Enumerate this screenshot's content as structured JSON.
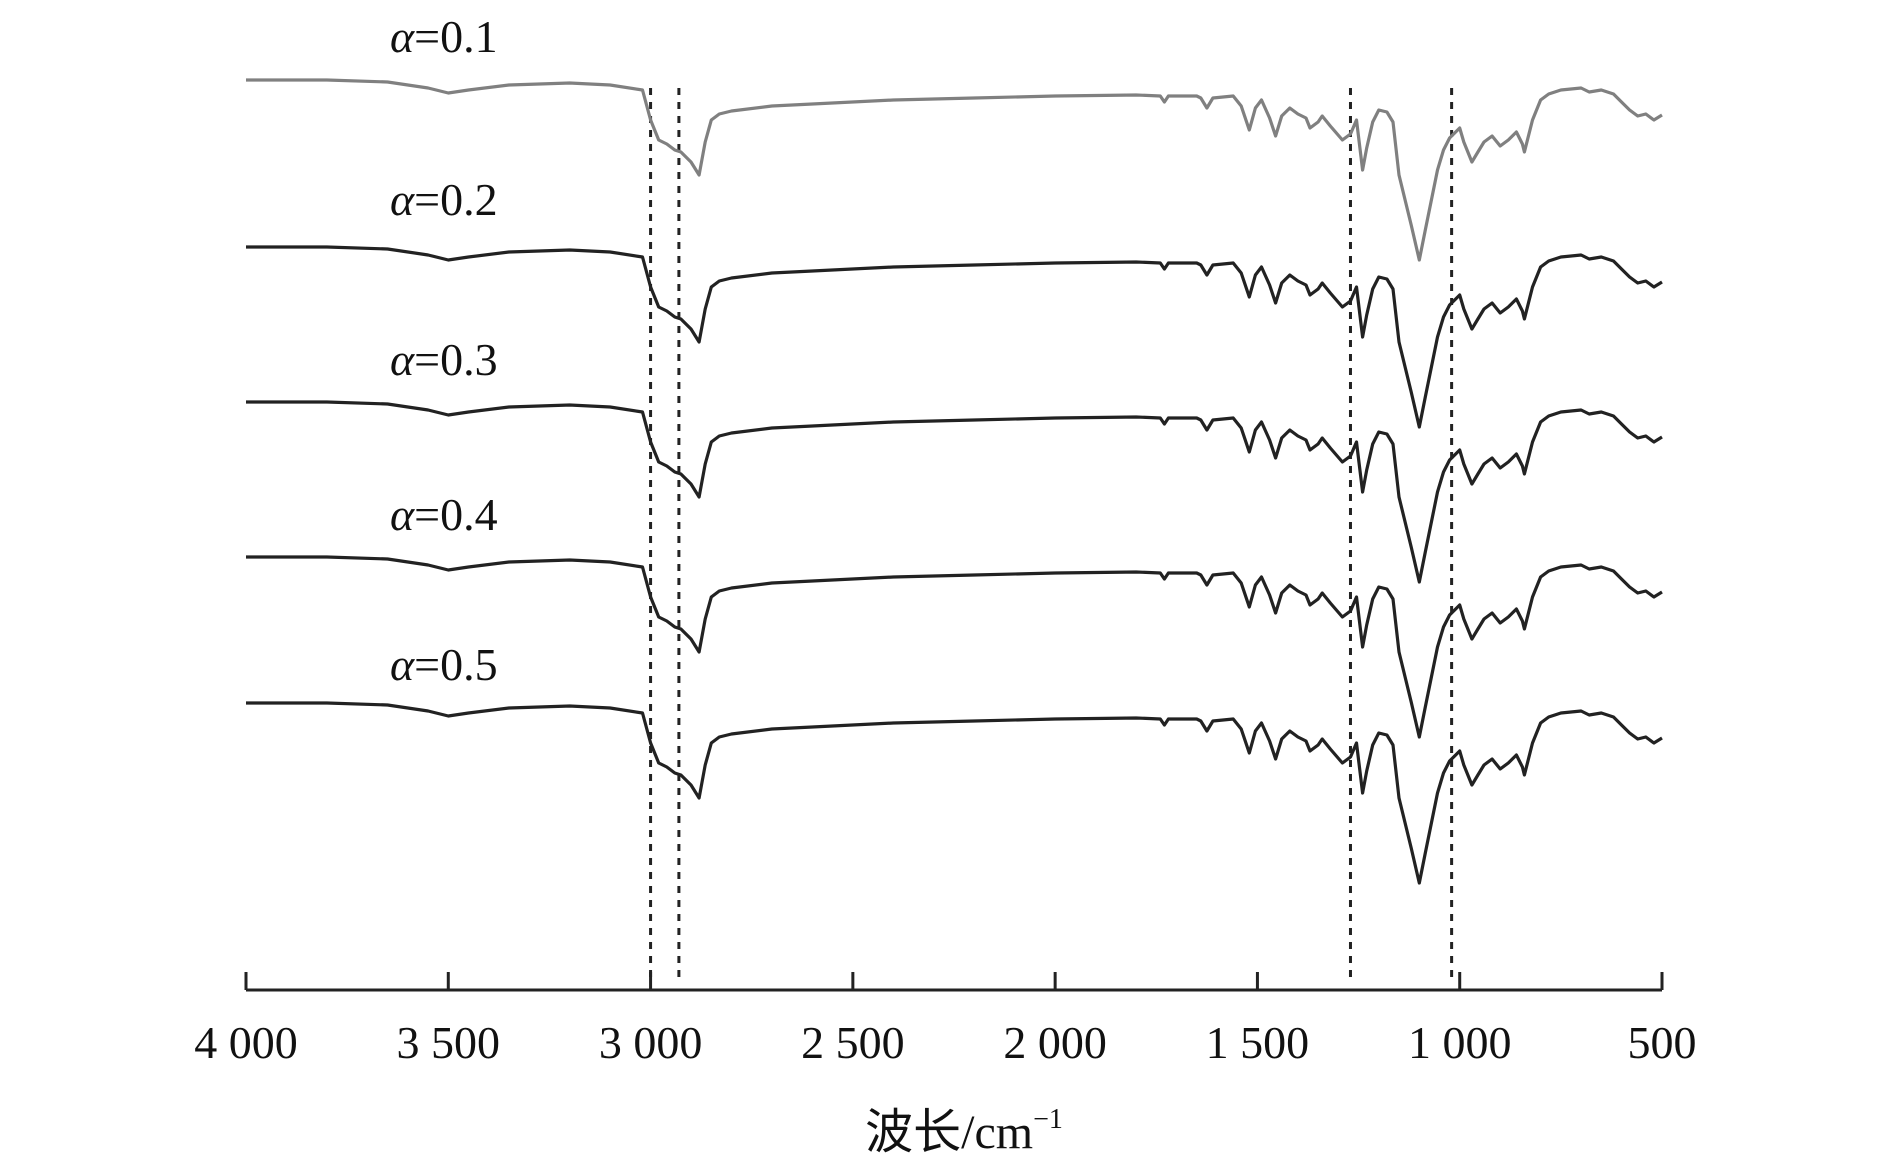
{
  "chart_data": {
    "type": "line",
    "title": "",
    "xlabel": "波长/cm",
    "xlabel_sup": "−1",
    "ylabel": "",
    "xlim": [
      4000,
      500
    ],
    "x_reversed": true,
    "x_ticks": [
      4000,
      3500,
      3000,
      2500,
      2000,
      1500,
      1000,
      500
    ],
    "x_tick_labels": [
      "4 000",
      "3 500",
      "3 000",
      "2 500",
      "2 000",
      "1 500",
      "1 000",
      "500"
    ],
    "y_axis_visible": false,
    "grid": false,
    "reference_lines_x": [
      3000,
      2930,
      1270,
      1020
    ],
    "series": [
      {
        "name": "α=0.1",
        "color": "#808080"
      },
      {
        "name": "α=0.2",
        "color": "#222222"
      },
      {
        "name": "α=0.3",
        "color": "#222222"
      },
      {
        "name": "α=0.4",
        "color": "#222222"
      },
      {
        "name": "α=0.5",
        "color": "#222222"
      }
    ],
    "series_label_prefix": "α",
    "series_label_values": [
      "=0.1",
      "=0.2",
      "=0.3",
      "=0.4",
      "=0.5"
    ],
    "spectrum_shape": [
      [
        4000,
        0
      ],
      [
        3800,
        0
      ],
      [
        3650,
        -2
      ],
      [
        3550,
        -8
      ],
      [
        3500,
        -13
      ],
      [
        3450,
        -10
      ],
      [
        3350,
        -5
      ],
      [
        3200,
        -3
      ],
      [
        3100,
        -5
      ],
      [
        3020,
        -10
      ],
      [
        3000,
        -40
      ],
      [
        2980,
        -60
      ],
      [
        2960,
        -64
      ],
      [
        2940,
        -70
      ],
      [
        2925,
        -72
      ],
      [
        2900,
        -82
      ],
      [
        2880,
        -95
      ],
      [
        2865,
        -62
      ],
      [
        2850,
        -40
      ],
      [
        2830,
        -34
      ],
      [
        2800,
        -31
      ],
      [
        2700,
        -26
      ],
      [
        2600,
        -24
      ],
      [
        2400,
        -20
      ],
      [
        2200,
        -18
      ],
      [
        2000,
        -16
      ],
      [
        1800,
        -15
      ],
      [
        1740,
        -16
      ],
      [
        1730,
        -22
      ],
      [
        1720,
        -16
      ],
      [
        1650,
        -16
      ],
      [
        1640,
        -18
      ],
      [
        1625,
        -28
      ],
      [
        1610,
        -18
      ],
      [
        1560,
        -16
      ],
      [
        1540,
        -26
      ],
      [
        1520,
        -50
      ],
      [
        1505,
        -28
      ],
      [
        1490,
        -20
      ],
      [
        1470,
        -38
      ],
      [
        1455,
        -56
      ],
      [
        1440,
        -36
      ],
      [
        1420,
        -28
      ],
      [
        1400,
        -34
      ],
      [
        1380,
        -38
      ],
      [
        1370,
        -48
      ],
      [
        1350,
        -42
      ],
      [
        1340,
        -36
      ],
      [
        1320,
        -46
      ],
      [
        1290,
        -60
      ],
      [
        1270,
        -54
      ],
      [
        1255,
        -40
      ],
      [
        1240,
        -90
      ],
      [
        1230,
        -68
      ],
      [
        1215,
        -42
      ],
      [
        1200,
        -30
      ],
      [
        1180,
        -32
      ],
      [
        1165,
        -42
      ],
      [
        1150,
        -95
      ],
      [
        1120,
        -145
      ],
      [
        1100,
        -180
      ],
      [
        1085,
        -150
      ],
      [
        1070,
        -120
      ],
      [
        1055,
        -90
      ],
      [
        1040,
        -70
      ],
      [
        1025,
        -58
      ],
      [
        1000,
        -48
      ],
      [
        990,
        -62
      ],
      [
        970,
        -82
      ],
      [
        955,
        -72
      ],
      [
        940,
        -62
      ],
      [
        920,
        -56
      ],
      [
        900,
        -66
      ],
      [
        880,
        -60
      ],
      [
        860,
        -52
      ],
      [
        845,
        -64
      ],
      [
        840,
        -72
      ],
      [
        820,
        -40
      ],
      [
        800,
        -20
      ],
      [
        780,
        -14
      ],
      [
        750,
        -10
      ],
      [
        700,
        -8
      ],
      [
        680,
        -12
      ],
      [
        650,
        -10
      ],
      [
        620,
        -14
      ],
      [
        600,
        -22
      ],
      [
        580,
        -30
      ],
      [
        560,
        -36
      ],
      [
        540,
        -34
      ],
      [
        520,
        -40
      ],
      [
        500,
        -35
      ]
    ]
  }
}
